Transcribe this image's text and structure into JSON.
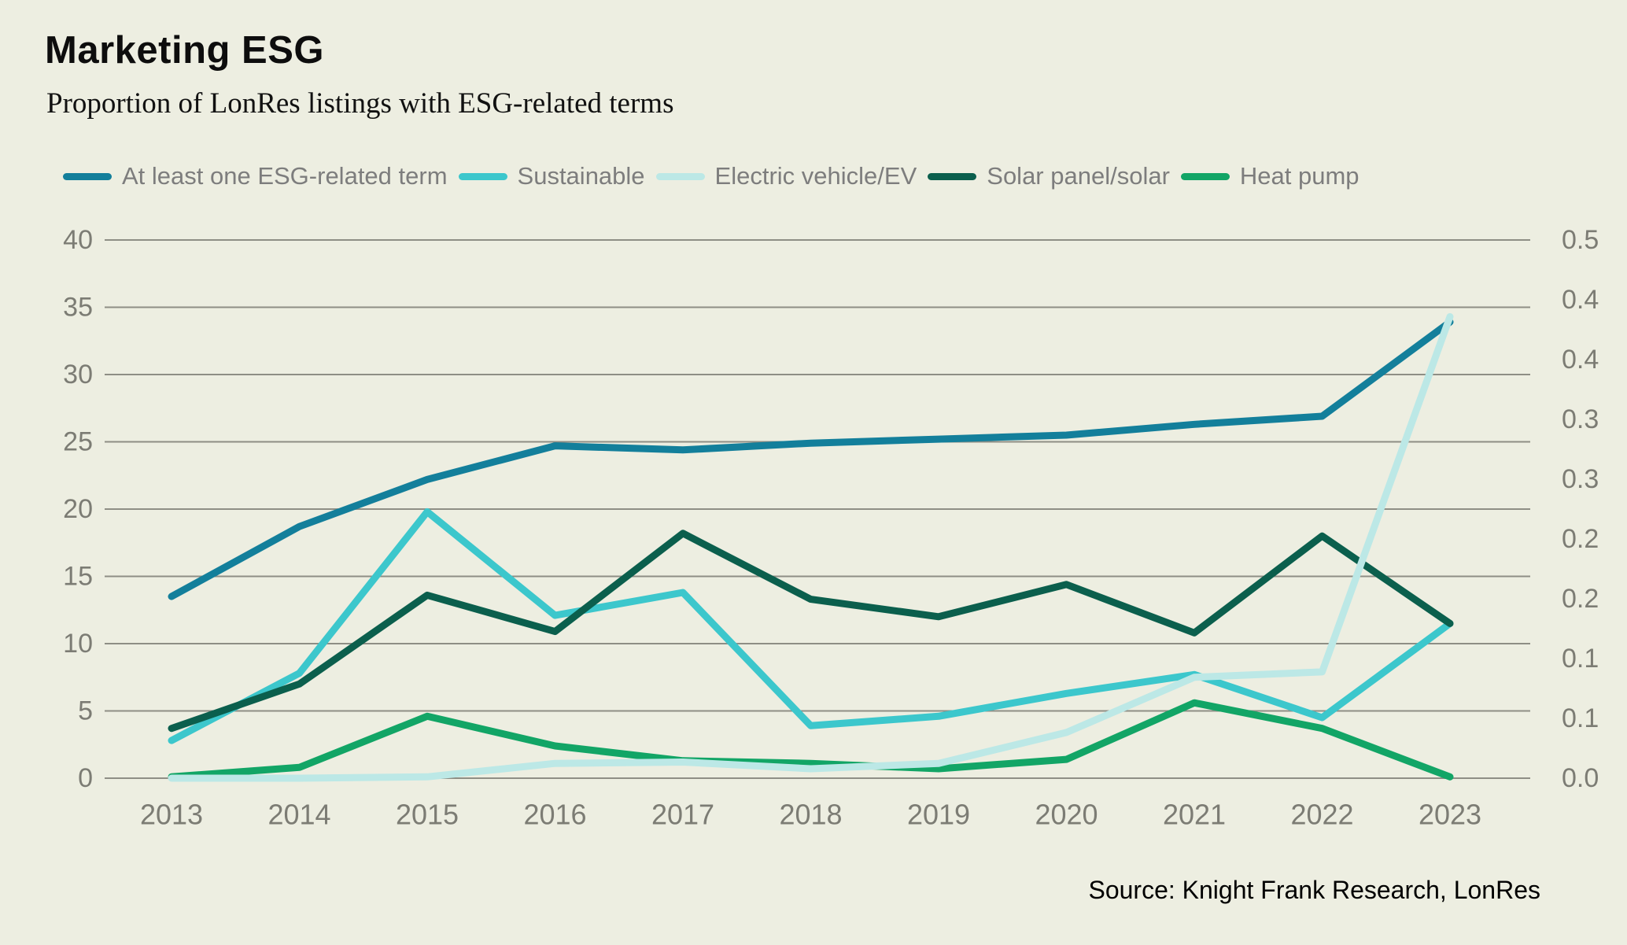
{
  "header": {
    "title": "Marketing ESG",
    "subtitle": "Proportion of LonRes listings with ESG-related terms"
  },
  "source": "Source: Knight Frank Research, LonRes",
  "colors": {
    "background": "#edeee1",
    "gridline": "#8e8e85",
    "axis_text": "#7c7c74",
    "legend_text": "#7d7d7d"
  },
  "chart_data": {
    "type": "line",
    "title": "Marketing ESG",
    "subtitle": "Proportion of LonRes listings with ESG-related terms",
    "x": [
      "2013",
      "2014",
      "2015",
      "2016",
      "2017",
      "2018",
      "2019",
      "2020",
      "2021",
      "2022",
      "2023"
    ],
    "series": [
      {
        "name": "At least one ESG-related term",
        "color": "#137f9b",
        "values": [
          13.5,
          18.7,
          22.2,
          24.7,
          24.4,
          24.9,
          25.2,
          25.5,
          26.3,
          26.9,
          33.9
        ]
      },
      {
        "name": "Sustainable",
        "color": "#3cc7cc",
        "values": [
          2.8,
          7.8,
          19.8,
          12.1,
          13.8,
          3.9,
          4.6,
          6.3,
          7.7,
          4.5,
          11.5
        ]
      },
      {
        "name": "Electric vehicle/EV",
        "color": "#bce8e6",
        "values": [
          0.0,
          0.0,
          0.1,
          1.1,
          1.2,
          0.7,
          1.1,
          3.4,
          7.5,
          7.9,
          34.3
        ]
      },
      {
        "name": "Solar panel/solar",
        "color": "#0b5f4d",
        "values": [
          3.7,
          7.0,
          13.6,
          10.9,
          18.2,
          13.3,
          12.0,
          14.4,
          10.8,
          18.0,
          11.5
        ]
      },
      {
        "name": "Heat pump",
        "color": "#12a566",
        "values": [
          0.1,
          0.8,
          4.6,
          2.4,
          1.3,
          1.1,
          0.7,
          1.4,
          5.6,
          3.7,
          0.1
        ]
      }
    ],
    "left_axis": {
      "ticks": [
        "0",
        "5",
        "10",
        "15",
        "20",
        "25",
        "30",
        "35",
        "40"
      ],
      "range": [
        0,
        40
      ]
    },
    "right_axis": {
      "labels_top_to_bottom": [
        "0.5",
        "0.4",
        "0.4",
        "0.3",
        "0.3",
        "0.2",
        "0.2",
        "0.1",
        "0.1",
        "0.0"
      ]
    },
    "grid": "horizontal",
    "legend_position": "top"
  }
}
